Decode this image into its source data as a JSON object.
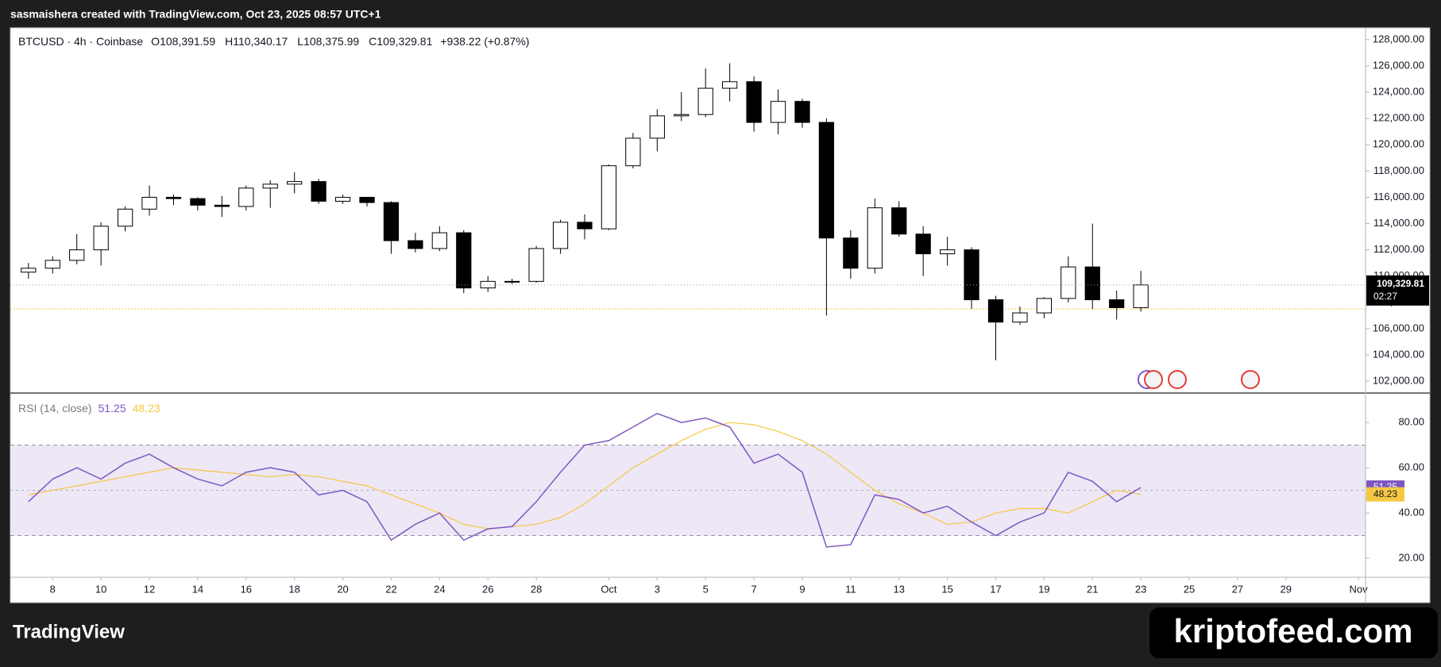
{
  "header": {
    "credit": "sasmaishera created with TradingView.com, Oct 23, 2025 08:57 UTC+1"
  },
  "chart_data": [
    {
      "type": "candlestick",
      "symbol": "BTCUSD · 4h · Coinbase",
      "ohlc": {
        "names": [
          "O",
          "H",
          "L",
          "C"
        ],
        "values": [
          108391.59,
          110340.17,
          108375.99,
          109329.81
        ],
        "value_labels": [
          "108,391.59",
          "110,340.17",
          "108,375.99",
          "109,329.81"
        ]
      },
      "change": "+938.22 (+0.87%)",
      "countdown": "02:27",
      "x": [
        "2025-09-07",
        "2025-09-08",
        "2025-09-09",
        "2025-09-10",
        "2025-09-11",
        "2025-09-12",
        "2025-09-13",
        "2025-09-14",
        "2025-09-15",
        "2025-09-16",
        "2025-09-17",
        "2025-09-18",
        "2025-09-19",
        "2025-09-20",
        "2025-09-21",
        "2025-09-22",
        "2025-09-23",
        "2025-09-24",
        "2025-09-25",
        "2025-09-26",
        "2025-09-27",
        "2025-09-28",
        "2025-09-29",
        "2025-09-30",
        "2025-10-01",
        "2025-10-02",
        "2025-10-03",
        "2025-10-04",
        "2025-10-05",
        "2025-10-06",
        "2025-10-07",
        "2025-10-08",
        "2025-10-09",
        "2025-10-10",
        "2025-10-11",
        "2025-10-12",
        "2025-10-13",
        "2025-10-14",
        "2025-10-15",
        "2025-10-16",
        "2025-10-17",
        "2025-10-18",
        "2025-10-19",
        "2025-10-20",
        "2025-10-21",
        "2025-10-22",
        "2025-10-23"
      ],
      "open": [
        110300,
        110600,
        111200,
        112000,
        113800,
        115100,
        116000,
        115900,
        115400,
        115300,
        116700,
        117000,
        117200,
        115700,
        116000,
        115600,
        112700,
        112100,
        113300,
        109100,
        109600,
        109600,
        112100,
        114100,
        113600,
        118400,
        120500,
        122200,
        122300,
        124300,
        124800,
        121700,
        123300,
        121700,
        112900,
        110600,
        115200,
        113200,
        111700,
        112000,
        108200,
        106500,
        107200,
        108300,
        110700,
        108200,
        107600
      ],
      "high": [
        111000,
        111500,
        113200,
        114100,
        115300,
        116900,
        116200,
        116000,
        116100,
        116900,
        117300,
        117900,
        117400,
        116200,
        116000,
        115700,
        113300,
        113800,
        113500,
        110000,
        109800,
        112300,
        114300,
        114700,
        118500,
        120900,
        122700,
        124000,
        125800,
        126200,
        125200,
        124200,
        123500,
        122000,
        113500,
        115900,
        115700,
        113800,
        113000,
        112200,
        108500,
        107700,
        108400,
        111500,
        114000,
        108900,
        110400
      ],
      "low": [
        109800,
        110200,
        110900,
        110800,
        113400,
        114600,
        115400,
        115000,
        114500,
        115000,
        115200,
        116300,
        115500,
        115500,
        115300,
        111700,
        111800,
        111900,
        108700,
        108800,
        109400,
        109500,
        111700,
        112800,
        113500,
        118200,
        119500,
        121800,
        122100,
        123300,
        121000,
        120800,
        121300,
        107000,
        109800,
        110200,
        113000,
        110000,
        110800,
        107500,
        103600,
        106300,
        106800,
        108000,
        107500,
        106700,
        107300
      ],
      "close": [
        110600,
        111200,
        112000,
        113800,
        115100,
        116000,
        115900,
        115400,
        115300,
        116700,
        117000,
        117200,
        115700,
        116000,
        115600,
        112700,
        112100,
        113300,
        109100,
        109600,
        109600,
        112100,
        114100,
        113600,
        118400,
        120500,
        122200,
        122300,
        124300,
        124800,
        121700,
        123300,
        121700,
        112900,
        110600,
        115200,
        113200,
        111700,
        112000,
        108200,
        106500,
        107200,
        108300,
        110700,
        108200,
        107600,
        109329.81
      ],
      "level_line": {
        "value": 107500,
        "color": "#f5c842"
      },
      "xlim": [
        "2025-09-06T06:00:00Z",
        "2025-11-01T07:00:00Z"
      ],
      "xticks": [
        {
          "value": "2025-09-08",
          "label": "8"
        },
        {
          "value": "2025-09-10",
          "label": "10"
        },
        {
          "value": "2025-09-12",
          "label": "12"
        },
        {
          "value": "2025-09-14",
          "label": "14"
        },
        {
          "value": "2025-09-16",
          "label": "16"
        },
        {
          "value": "2025-09-18",
          "label": "18"
        },
        {
          "value": "2025-09-20",
          "label": "20"
        },
        {
          "value": "2025-09-22",
          "label": "22"
        },
        {
          "value": "2025-09-24",
          "label": "24"
        },
        {
          "value": "2025-09-26",
          "label": "26"
        },
        {
          "value": "2025-09-28",
          "label": "28"
        },
        {
          "value": "2025-10-01",
          "label": "Oct"
        },
        {
          "value": "2025-10-03",
          "label": "3"
        },
        {
          "value": "2025-10-05",
          "label": "5"
        },
        {
          "value": "2025-10-07",
          "label": "7"
        },
        {
          "value": "2025-10-09",
          "label": "9"
        },
        {
          "value": "2025-10-11",
          "label": "11"
        },
        {
          "value": "2025-10-13",
          "label": "13"
        },
        {
          "value": "2025-10-15",
          "label": "15"
        },
        {
          "value": "2025-10-17",
          "label": "17"
        },
        {
          "value": "2025-10-19",
          "label": "19"
        },
        {
          "value": "2025-10-21",
          "label": "21"
        },
        {
          "value": "2025-10-23",
          "label": "23"
        },
        {
          "value": "2025-10-25",
          "label": "25"
        },
        {
          "value": "2025-10-27",
          "label": "27"
        },
        {
          "value": "2025-10-29",
          "label": "29"
        },
        {
          "value": "2025-11-01",
          "label": "Nov"
        }
      ],
      "ylim": [
        101100,
        128900
      ],
      "yticks": [
        {
          "value": 102000,
          "label": "102,000.00"
        },
        {
          "value": 104000,
          "label": "104,000.00"
        },
        {
          "value": 106000,
          "label": "106,000.00"
        },
        {
          "value": 108000,
          "label": "108,000.00"
        },
        {
          "value": 110000,
          "label": "110,000.00"
        },
        {
          "value": 112000,
          "label": "112,000.00"
        },
        {
          "value": 114000,
          "label": "114,000.00"
        },
        {
          "value": 116000,
          "label": "116,000.00"
        },
        {
          "value": 118000,
          "label": "118,000.00"
        },
        {
          "value": 120000,
          "label": "120,000.00"
        },
        {
          "value": 122000,
          "label": "122,000.00"
        },
        {
          "value": 124000,
          "label": "124,000.00"
        },
        {
          "value": 126000,
          "label": "126,000.00"
        },
        {
          "value": 128000,
          "label": "128,000.00"
        }
      ],
      "up_color": "#ffffff",
      "down_color": "#000000",
      "edge_color": "#000000"
    },
    {
      "type": "line",
      "title": "RSI (14, close)",
      "x": [
        "2025-09-07",
        "2025-09-08",
        "2025-09-09",
        "2025-09-10",
        "2025-09-11",
        "2025-09-12",
        "2025-09-13",
        "2025-09-14",
        "2025-09-15",
        "2025-09-16",
        "2025-09-17",
        "2025-09-18",
        "2025-09-19",
        "2025-09-20",
        "2025-09-21",
        "2025-09-22",
        "2025-09-23",
        "2025-09-24",
        "2025-09-25",
        "2025-09-26",
        "2025-09-27",
        "2025-09-28",
        "2025-09-29",
        "2025-09-30",
        "2025-10-01",
        "2025-10-02",
        "2025-10-03",
        "2025-10-04",
        "2025-10-05",
        "2025-10-06",
        "2025-10-07",
        "2025-10-08",
        "2025-10-09",
        "2025-10-10",
        "2025-10-11",
        "2025-10-12",
        "2025-10-13",
        "2025-10-14",
        "2025-10-15",
        "2025-10-16",
        "2025-10-17",
        "2025-10-18",
        "2025-10-19",
        "2025-10-20",
        "2025-10-21",
        "2025-10-22",
        "2025-10-23"
      ],
      "series": [
        {
          "name": "RSI",
          "color": "#7e57c2",
          "values": [
            45,
            55,
            60,
            55,
            62,
            66,
            60,
            55,
            52,
            58,
            60,
            58,
            48,
            50,
            45,
            28,
            35,
            40,
            28,
            33,
            34,
            45,
            58,
            70,
            72,
            78,
            84,
            80,
            82,
            78,
            62,
            66,
            58,
            25,
            26,
            48,
            46,
            40,
            43,
            36,
            30,
            36,
            40,
            58,
            54,
            45,
            51.25
          ]
        },
        {
          "name": "RSI MA",
          "color": "#f5c842",
          "values": [
            48,
            50,
            52,
            54,
            56,
            58,
            60,
            59,
            58,
            57,
            56,
            57,
            56,
            54,
            52,
            48,
            44,
            40,
            35,
            33,
            34,
            35,
            38,
            44,
            52,
            60,
            66,
            72,
            77,
            80,
            79,
            76,
            72,
            66,
            58,
            50,
            44,
            40,
            35,
            36,
            40,
            42,
            42,
            40,
            45,
            50,
            48.23
          ]
        }
      ],
      "bands": {
        "upper": 70,
        "middle": 50,
        "lower": 30,
        "fill": "#ede7f6"
      },
      "xlim": [
        "2025-09-06T06:00:00Z",
        "2025-11-01T07:00:00Z"
      ],
      "ylim": [
        11.6,
        93
      ],
      "yticks": [
        {
          "value": 20,
          "label": "20.00"
        },
        {
          "value": 40,
          "label": "40.00"
        },
        {
          "value": 60,
          "label": "60.00"
        },
        {
          "value": 80,
          "label": "80.00"
        }
      ]
    }
  ],
  "footer": {
    "brand": "TradingView",
    "watermark": "kriptofeed.com"
  }
}
